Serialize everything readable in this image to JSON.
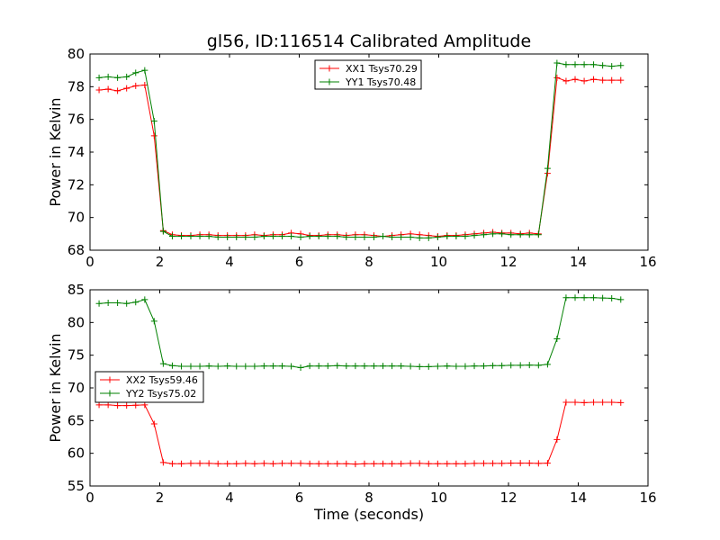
{
  "chart_data": [
    {
      "type": "line",
      "title": "gl56, ID:116514 Calibrated Amplitude",
      "xlabel": "",
      "ylabel": "Power in Kelvin",
      "xlim": [
        0,
        16
      ],
      "ylim": [
        68,
        80
      ],
      "xticks": [
        "0",
        "2",
        "4",
        "6",
        "8",
        "10",
        "12",
        "14",
        "16"
      ],
      "yticks": [
        "68",
        "70",
        "72",
        "74",
        "76",
        "78",
        "80"
      ],
      "grid": false,
      "legend_position": "upper-center",
      "x": [
        0.26,
        0.52,
        0.79,
        1.05,
        1.31,
        1.57,
        1.84,
        2.1,
        2.36,
        2.62,
        2.89,
        3.15,
        3.41,
        3.67,
        3.94,
        4.2,
        4.46,
        4.72,
        4.99,
        5.25,
        5.51,
        5.77,
        6.04,
        6.3,
        6.56,
        6.82,
        7.09,
        7.35,
        7.61,
        7.87,
        8.14,
        8.4,
        8.66,
        8.92,
        9.19,
        9.45,
        9.71,
        9.97,
        10.24,
        10.5,
        10.76,
        11.02,
        11.29,
        11.55,
        11.81,
        12.07,
        12.34,
        12.6,
        12.86,
        13.12,
        13.39,
        13.65,
        13.91,
        14.17,
        14.44,
        14.7,
        14.96,
        15.22
      ],
      "series": [
        {
          "name": "XX1 Tsys70.29",
          "color": "#ff0000",
          "values": [
            77.8,
            77.85,
            77.75,
            77.9,
            78.05,
            78.1,
            75.0,
            69.2,
            68.95,
            68.9,
            68.9,
            68.95,
            68.95,
            68.9,
            68.9,
            68.9,
            68.9,
            68.95,
            68.9,
            68.95,
            68.95,
            69.05,
            69.0,
            68.9,
            68.9,
            68.95,
            68.95,
            68.9,
            68.95,
            68.95,
            68.9,
            68.85,
            68.9,
            68.95,
            69.0,
            68.95,
            68.9,
            68.85,
            68.9,
            68.9,
            68.95,
            69.0,
            69.05,
            69.1,
            69.05,
            69.05,
            69.0,
            69.05,
            69.0,
            72.7,
            78.55,
            78.35,
            78.45,
            78.35,
            78.45,
            78.4,
            78.4,
            78.4
          ]
        },
        {
          "name": "YY1 Tsys70.48",
          "color": "#008000",
          "values": [
            78.55,
            78.6,
            78.55,
            78.6,
            78.85,
            79.0,
            75.9,
            69.15,
            68.85,
            68.85,
            68.85,
            68.85,
            68.85,
            68.8,
            68.8,
            68.8,
            68.8,
            68.8,
            68.85,
            68.85,
            68.85,
            68.85,
            68.8,
            68.85,
            68.85,
            68.85,
            68.85,
            68.8,
            68.8,
            68.8,
            68.8,
            68.85,
            68.8,
            68.8,
            68.8,
            68.75,
            68.75,
            68.8,
            68.85,
            68.85,
            68.85,
            68.9,
            68.95,
            69.0,
            69.0,
            68.95,
            68.95,
            68.95,
            68.95,
            73.0,
            79.45,
            79.35,
            79.35,
            79.35,
            79.35,
            79.3,
            79.25,
            79.3
          ]
        }
      ]
    },
    {
      "type": "line",
      "title": "",
      "xlabel": "Time (seconds)",
      "ylabel": "Power in Kelvin",
      "xlim": [
        0,
        16
      ],
      "ylim": [
        55,
        85
      ],
      "xticks": [
        "0",
        "2",
        "4",
        "6",
        "8",
        "10",
        "12",
        "14",
        "16"
      ],
      "yticks": [
        "55",
        "60",
        "65",
        "70",
        "75",
        "80",
        "85"
      ],
      "grid": false,
      "legend_position": "center-left",
      "x": [
        0.26,
        0.52,
        0.79,
        1.05,
        1.31,
        1.57,
        1.84,
        2.1,
        2.36,
        2.62,
        2.89,
        3.15,
        3.41,
        3.67,
        3.94,
        4.2,
        4.46,
        4.72,
        4.99,
        5.25,
        5.51,
        5.77,
        6.04,
        6.3,
        6.56,
        6.82,
        7.09,
        7.35,
        7.61,
        7.87,
        8.14,
        8.4,
        8.66,
        8.92,
        9.19,
        9.45,
        9.71,
        9.97,
        10.24,
        10.5,
        10.76,
        11.02,
        11.29,
        11.55,
        11.81,
        12.07,
        12.34,
        12.6,
        12.86,
        13.12,
        13.39,
        13.65,
        13.91,
        14.17,
        14.44,
        14.7,
        14.96,
        15.22
      ],
      "series": [
        {
          "name": "XX2 Tsys59.46",
          "color": "#ff0000",
          "values": [
            67.4,
            67.4,
            67.3,
            67.3,
            67.35,
            67.4,
            64.5,
            58.6,
            58.4,
            58.4,
            58.45,
            58.45,
            58.45,
            58.4,
            58.4,
            58.4,
            58.45,
            58.4,
            58.45,
            58.4,
            58.45,
            58.45,
            58.45,
            58.4,
            58.4,
            58.4,
            58.4,
            58.4,
            58.35,
            58.4,
            58.4,
            58.4,
            58.4,
            58.4,
            58.45,
            58.45,
            58.4,
            58.4,
            58.4,
            58.4,
            58.4,
            58.45,
            58.45,
            58.45,
            58.45,
            58.5,
            58.5,
            58.5,
            58.45,
            58.5,
            62.1,
            67.8,
            67.8,
            67.75,
            67.8,
            67.8,
            67.8,
            67.75
          ]
        },
        {
          "name": "YY2 Tsys75.02",
          "color": "#008000",
          "values": [
            82.9,
            83.0,
            83.0,
            82.9,
            83.1,
            83.5,
            80.2,
            73.7,
            73.4,
            73.3,
            73.3,
            73.3,
            73.35,
            73.3,
            73.35,
            73.3,
            73.3,
            73.3,
            73.35,
            73.35,
            73.35,
            73.3,
            73.1,
            73.35,
            73.35,
            73.35,
            73.4,
            73.35,
            73.35,
            73.35,
            73.35,
            73.35,
            73.35,
            73.35,
            73.3,
            73.25,
            73.25,
            73.3,
            73.35,
            73.3,
            73.3,
            73.35,
            73.35,
            73.4,
            73.4,
            73.45,
            73.45,
            73.5,
            73.45,
            73.6,
            77.5,
            83.8,
            83.8,
            83.8,
            83.8,
            83.75,
            83.7,
            83.5
          ]
        }
      ]
    }
  ]
}
